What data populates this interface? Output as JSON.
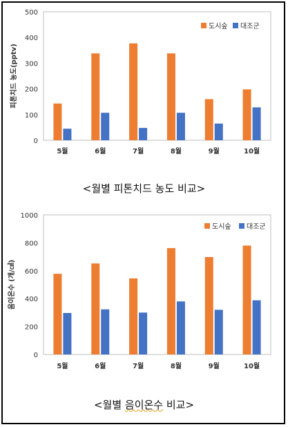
{
  "chart_data": [
    {
      "type": "bar",
      "categories": [
        "5월",
        "6월",
        "7월",
        "8월",
        "9월",
        "10월"
      ],
      "series": [
        {
          "name": "도시숲",
          "color": "#ed7d31",
          "values": [
            143,
            338,
            377,
            338,
            160,
            198
          ]
        },
        {
          "name": "대조군",
          "color": "#4472c4",
          "values": [
            45,
            107,
            48,
            107,
            65,
            128
          ]
        }
      ],
      "ylabel": "피톤치드 농도(pptv)",
      "xlabel": "",
      "ylim": [
        0,
        500
      ],
      "yticks": [
        "0",
        "100",
        "200",
        "300",
        "400",
        "500"
      ],
      "grid": false,
      "legend": "top-right"
    },
    {
      "type": "bar",
      "categories": [
        "5월",
        "6월",
        "7월",
        "8월",
        "9월",
        "10월"
      ],
      "series": [
        {
          "name": "도시숲",
          "color": "#ed7d31",
          "values": [
            578,
            652,
            545,
            762,
            698,
            780
          ]
        },
        {
          "name": "대조군",
          "color": "#4472c4",
          "values": [
            297,
            323,
            300,
            380,
            320,
            388
          ]
        }
      ],
      "ylabel": "음이온수 (개/㎤)",
      "xlabel": "",
      "ylim": [
        0,
        1000
      ],
      "yticks": [
        "0",
        "200",
        "400",
        "600",
        "800",
        "1000"
      ],
      "grid": false,
      "legend": "top-right"
    }
  ],
  "captions": {
    "chart1": "<월별 피톤치드 농도 비교>",
    "chart2_prefix": "<월별 ",
    "chart2_marked": "음이온수",
    "chart2_suffix": " 비교>"
  }
}
